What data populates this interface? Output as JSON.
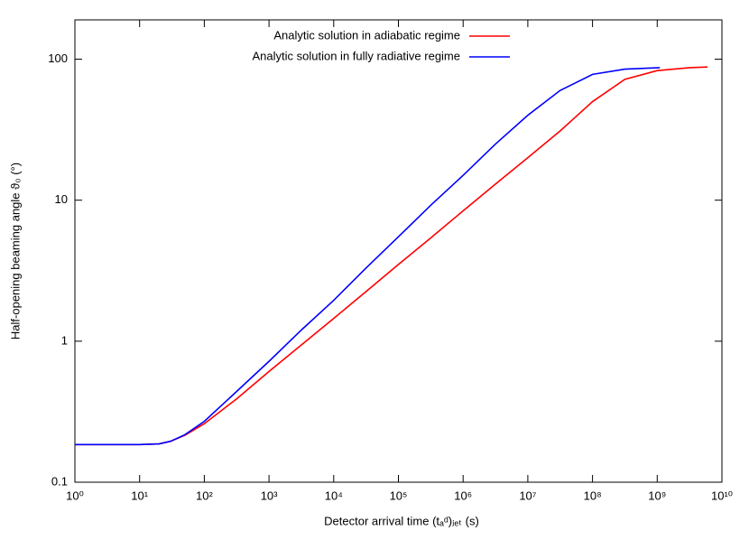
{
  "chart_data": {
    "type": "line",
    "xlabel": "Detector arrival time (tₐᵈ)ⱼₑₜ (s)",
    "ylabel": "Half-opening beaming angle ϑ₀ (°)",
    "xscale": "log",
    "yscale": "log",
    "xlim": [
      1,
      10000000000
    ],
    "ylim": [
      0.1,
      190
    ],
    "xticks": [
      {
        "value": 1,
        "label": "10⁰"
      },
      {
        "value": 10,
        "label": "10¹"
      },
      {
        "value": 100,
        "label": "10²"
      },
      {
        "value": 1000,
        "label": "10³"
      },
      {
        "value": 10000,
        "label": "10⁴"
      },
      {
        "value": 100000,
        "label": "10⁵"
      },
      {
        "value": 1000000,
        "label": "10⁶"
      },
      {
        "value": 10000000,
        "label": "10⁷"
      },
      {
        "value": 100000000,
        "label": "10⁸"
      },
      {
        "value": 1000000000,
        "label": "10⁹"
      },
      {
        "value": 10000000000,
        "label": "10¹⁰"
      }
    ],
    "yticks": [
      0.1,
      1,
      10,
      100
    ],
    "legend": "top",
    "series": [
      {
        "name": "Analytic solution in adiabatic regime",
        "color": "#ff0000",
        "x": [
          1,
          10,
          20,
          30,
          50,
          100,
          316,
          1000,
          3160,
          10000,
          31600,
          100000,
          316000,
          1000000,
          3160000,
          10000000,
          31600000,
          100000000,
          316000000,
          1000000000,
          3160000000,
          6000000000
        ],
        "values": [
          0.185,
          0.185,
          0.187,
          0.195,
          0.215,
          0.26,
          0.39,
          0.61,
          0.94,
          1.45,
          2.25,
          3.5,
          5.4,
          8.4,
          13,
          20,
          31,
          50,
          72,
          83,
          87,
          88
        ]
      },
      {
        "name": "Analytic solution in fully radiative regime",
        "color": "#0000ff",
        "x": [
          1,
          10,
          20,
          30,
          50,
          100,
          316,
          1000,
          3160,
          10000,
          31600,
          100000,
          316000,
          1000000,
          3160000,
          10000000,
          31600000,
          100000000,
          316000000,
          1100000000
        ],
        "values": [
          0.185,
          0.185,
          0.187,
          0.195,
          0.217,
          0.27,
          0.44,
          0.72,
          1.2,
          1.95,
          3.3,
          5.5,
          9.2,
          15,
          25,
          40,
          60,
          78,
          85,
          87
        ]
      }
    ]
  }
}
